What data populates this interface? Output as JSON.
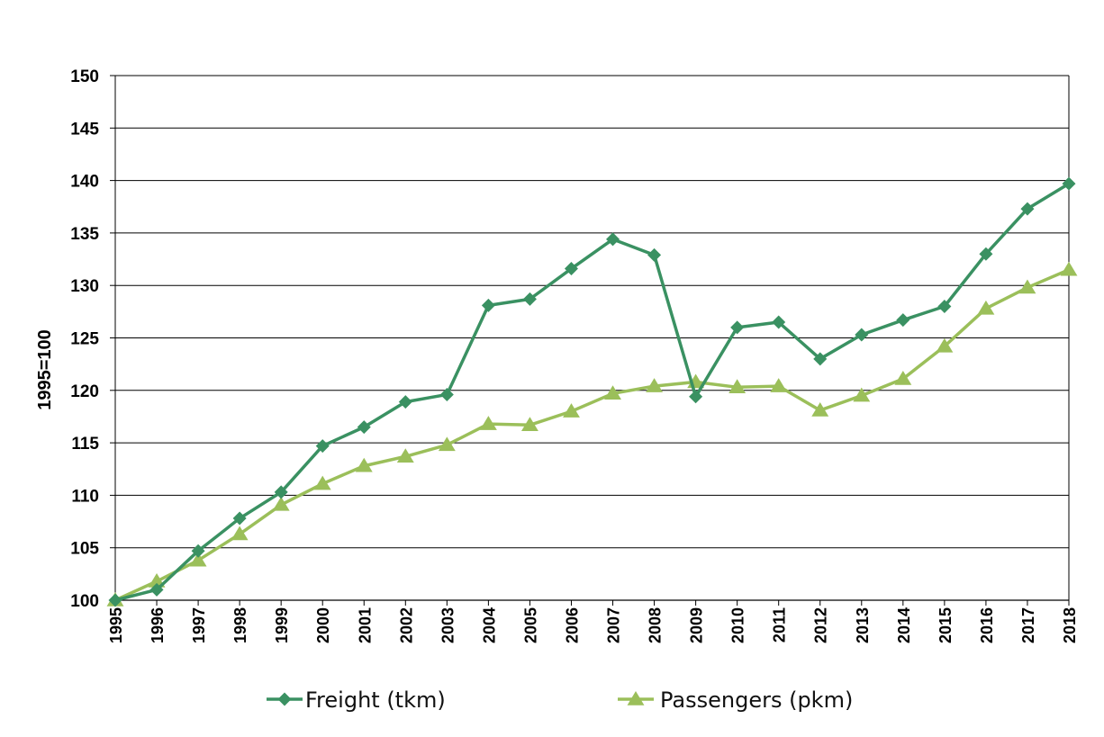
{
  "chart_data": {
    "type": "line",
    "title": "",
    "xlabel": "",
    "ylabel": "1995=100",
    "ylim": [
      100,
      150
    ],
    "yticks": [
      100,
      105,
      110,
      115,
      120,
      125,
      130,
      135,
      140,
      145,
      150
    ],
    "grid": true,
    "legend_position": "bottom",
    "categories": [
      "1995",
      "1996",
      "1997",
      "1998",
      "1999",
      "2000",
      "2001",
      "2002",
      "2003",
      "2004",
      "2005",
      "2006",
      "2007",
      "2008",
      "2009",
      "2010",
      "2011",
      "2012",
      "2013",
      "2014",
      "2015",
      "2016",
      "2017",
      "2018"
    ],
    "series": [
      {
        "name": "Freight (tkm)",
        "color": "#3a9162",
        "marker": "diamond",
        "values": [
          100.0,
          101.0,
          104.7,
          107.8,
          110.3,
          114.7,
          116.5,
          118.9,
          119.6,
          128.1,
          128.7,
          131.6,
          134.4,
          132.9,
          119.4,
          126.0,
          126.5,
          123.0,
          125.3,
          126.7,
          128.0,
          133.0,
          137.3,
          139.7
        ]
      },
      {
        "name": "Passengers (pkm)",
        "color": "#9bbf5a",
        "marker": "triangle",
        "values": [
          100.0,
          101.8,
          103.8,
          106.3,
          109.1,
          111.1,
          112.8,
          113.7,
          114.8,
          116.8,
          116.7,
          118.0,
          119.7,
          120.4,
          120.8,
          120.3,
          120.4,
          118.1,
          119.5,
          121.1,
          124.2,
          127.8,
          129.8,
          131.5
        ]
      }
    ]
  }
}
